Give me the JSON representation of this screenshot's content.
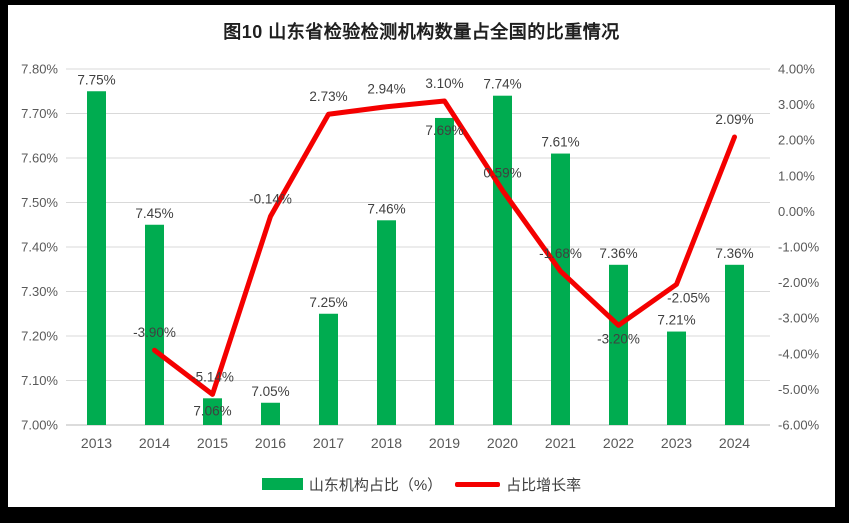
{
  "title": "图10  山东省检验检测机构数量占全国的比重情况",
  "colors": {
    "bar": "#00AC50",
    "line": "#F40000",
    "grid": "#D9D9D9",
    "axis_line": "#D0D0D0",
    "tick_text": "#595959",
    "label_text": "#404040",
    "background": "#FFFFFF",
    "frame": "#000000"
  },
  "chart_data": {
    "type": "bar",
    "subtype": "combo-bar-line-dual-axis",
    "title": "图10  山东省检验检测机构数量占全国的比重情况",
    "categories": [
      "2013",
      "2014",
      "2015",
      "2016",
      "2017",
      "2018",
      "2019",
      "2020",
      "2021",
      "2022",
      "2023",
      "2024"
    ],
    "series": [
      {
        "name": "山东机构占比（%）",
        "chart": "bar",
        "axis": "left",
        "color": "#00AC50",
        "values": [
          7.75,
          7.45,
          7.06,
          7.05,
          7.25,
          7.46,
          7.69,
          7.74,
          7.61,
          7.36,
          7.21,
          7.36
        ],
        "labels": [
          "7.75%",
          "7.45%",
          "7.06%",
          "7.05%",
          "7.25%",
          "7.46%",
          "7.69%",
          "7.74%",
          "7.61%",
          "7.36%",
          "7.21%",
          "7.36%"
        ]
      },
      {
        "name": "占比增长率",
        "chart": "line",
        "axis": "right",
        "color": "#F40000",
        "values": [
          null,
          -3.9,
          -5.14,
          -0.14,
          2.73,
          2.94,
          3.1,
          0.59,
          -1.68,
          -3.2,
          -2.05,
          2.09
        ],
        "labels": [
          "",
          "-3.90%",
          "-5.14%",
          "-0.14%",
          "2.73%",
          "2.94%",
          "3.10%",
          "0.59%",
          "-1.68%",
          "-3.20%",
          "-2.05%",
          "2.09%"
        ]
      }
    ],
    "left_axis": {
      "min": 7.0,
      "max": 7.8,
      "step": 0.1,
      "ticks": [
        "7.80%",
        "7.70%",
        "7.60%",
        "7.50%",
        "7.40%",
        "7.30%",
        "7.20%",
        "7.10%",
        "7.00%"
      ]
    },
    "right_axis": {
      "min": -6.0,
      "max": 4.0,
      "step": 1.0,
      "ticks": [
        "4.00%",
        "3.00%",
        "2.00%",
        "1.00%",
        "0.00%",
        "-1.00%",
        "-2.00%",
        "-3.00%",
        "-4.00%",
        "-5.00%",
        "-6.00%"
      ]
    },
    "grid": true,
    "legend_position": "bottom"
  }
}
